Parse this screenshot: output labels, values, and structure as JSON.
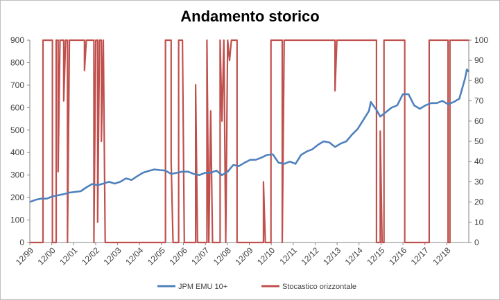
{
  "chart_data": {
    "type": "line",
    "title": "Andamento storico",
    "xlabel": "",
    "ylabel": "",
    "y2label": "",
    "x_tick_labels": [
      "12/99",
      "12/00",
      "12/01",
      "12/02",
      "12/03",
      "12/04",
      "12/05",
      "12/06",
      "12/07",
      "12/08",
      "12/09",
      "12/10",
      "12/11",
      "12/12",
      "12/13",
      "12/14",
      "12/15",
      "12/16",
      "12/17",
      "12/18"
    ],
    "xlim": [
      "1999-12",
      "2019-05"
    ],
    "ylim": [
      0,
      900
    ],
    "y_ticks": [
      0,
      100,
      200,
      300,
      400,
      500,
      600,
      700,
      800,
      900
    ],
    "y2lim": [
      0,
      100
    ],
    "y2_ticks": [
      0,
      10,
      20,
      30,
      40,
      50,
      60,
      70,
      80,
      90,
      100
    ],
    "grid": false,
    "legend_position": "bottom",
    "series": [
      {
        "name": "JPM EMU 10+",
        "axis": "left",
        "color": "#4f81bd",
        "points": [
          [
            "1999-12",
            180
          ],
          [
            "2000-03",
            190
          ],
          [
            "2000-06",
            195
          ],
          [
            "2000-09",
            195
          ],
          [
            "2000-12",
            205
          ],
          [
            "2001-03",
            210
          ],
          [
            "2001-06",
            215
          ],
          [
            "2001-09",
            222
          ],
          [
            "2001-12",
            225
          ],
          [
            "2002-03",
            228
          ],
          [
            "2002-06",
            245
          ],
          [
            "2002-09",
            260
          ],
          [
            "2002-12",
            255
          ],
          [
            "2003-03",
            262
          ],
          [
            "2003-06",
            270
          ],
          [
            "2003-09",
            262
          ],
          [
            "2003-12",
            270
          ],
          [
            "2004-03",
            285
          ],
          [
            "2004-06",
            278
          ],
          [
            "2004-09",
            295
          ],
          [
            "2004-12",
            310
          ],
          [
            "2005-03",
            318
          ],
          [
            "2005-06",
            325
          ],
          [
            "2005-09",
            322
          ],
          [
            "2005-12",
            320
          ],
          [
            "2006-03",
            305
          ],
          [
            "2006-06",
            310
          ],
          [
            "2006-09",
            315
          ],
          [
            "2006-12",
            315
          ],
          [
            "2007-03",
            305
          ],
          [
            "2007-06",
            300
          ],
          [
            "2007-09",
            310
          ],
          [
            "2007-12",
            310
          ],
          [
            "2008-03",
            320
          ],
          [
            "2008-06",
            300
          ],
          [
            "2008-09",
            315
          ],
          [
            "2008-12",
            345
          ],
          [
            "2009-03",
            340
          ],
          [
            "2009-06",
            355
          ],
          [
            "2009-09",
            368
          ],
          [
            "2009-12",
            368
          ],
          [
            "2010-03",
            378
          ],
          [
            "2010-06",
            390
          ],
          [
            "2010-09",
            392
          ],
          [
            "2010-12",
            355
          ],
          [
            "2011-03",
            350
          ],
          [
            "2011-06",
            360
          ],
          [
            "2011-09",
            350
          ],
          [
            "2011-12",
            390
          ],
          [
            "2012-03",
            405
          ],
          [
            "2012-06",
            415
          ],
          [
            "2012-09",
            435
          ],
          [
            "2012-12",
            450
          ],
          [
            "2013-03",
            445
          ],
          [
            "2013-06",
            425
          ],
          [
            "2013-09",
            440
          ],
          [
            "2013-12",
            450
          ],
          [
            "2014-03",
            480
          ],
          [
            "2014-06",
            505
          ],
          [
            "2014-09",
            545
          ],
          [
            "2014-12",
            585
          ],
          [
            "2015-01",
            625
          ],
          [
            "2015-04",
            590
          ],
          [
            "2015-06",
            560
          ],
          [
            "2015-09",
            580
          ],
          [
            "2015-12",
            600
          ],
          [
            "2016-03",
            610
          ],
          [
            "2016-06",
            660
          ],
          [
            "2016-09",
            660
          ],
          [
            "2016-12",
            610
          ],
          [
            "2017-03",
            595
          ],
          [
            "2017-06",
            610
          ],
          [
            "2017-09",
            620
          ],
          [
            "2017-12",
            620
          ],
          [
            "2018-03",
            630
          ],
          [
            "2018-06",
            615
          ],
          [
            "2018-09",
            625
          ],
          [
            "2018-12",
            640
          ],
          [
            "2019-01",
            670
          ],
          [
            "2019-03",
            730
          ],
          [
            "2019-04",
            770
          ],
          [
            "2019-05",
            760
          ]
        ]
      },
      {
        "name": "Stocastico orizzontale",
        "axis": "right",
        "color": "#c0504d",
        "points": [
          [
            "1999-12",
            0
          ],
          [
            "2000-07",
            0
          ],
          [
            "2000-07",
            100
          ],
          [
            "2000-12",
            100
          ],
          [
            "2000-12",
            0
          ],
          [
            "2001-02",
            0
          ],
          [
            "2001-02",
            100
          ],
          [
            "2001-03",
            100
          ],
          [
            "2001-03",
            35
          ],
          [
            "2001-04",
            100
          ],
          [
            "2001-06",
            100
          ],
          [
            "2001-06",
            70
          ],
          [
            "2001-07",
            100
          ],
          [
            "2001-08",
            100
          ],
          [
            "2001-08",
            0
          ],
          [
            "2001-09",
            100
          ],
          [
            "2002-05",
            100
          ],
          [
            "2002-05",
            85
          ],
          [
            "2002-06",
            100
          ],
          [
            "2002-10",
            100
          ],
          [
            "2002-10",
            0
          ],
          [
            "2002-11",
            100
          ],
          [
            "2002-12",
            100
          ],
          [
            "2002-12",
            10
          ],
          [
            "2003-01",
            100
          ],
          [
            "2003-02",
            100
          ],
          [
            "2003-02",
            50
          ],
          [
            "2003-03",
            100
          ],
          [
            "2003-04",
            0
          ],
          [
            "2005-12",
            0
          ],
          [
            "2005-12",
            100
          ],
          [
            "2006-03",
            100
          ],
          [
            "2006-03",
            40
          ],
          [
            "2006-04",
            0
          ],
          [
            "2006-07",
            0
          ],
          [
            "2006-07",
            100
          ],
          [
            "2006-09",
            100
          ],
          [
            "2006-10",
            0
          ],
          [
            "2007-04",
            0
          ],
          [
            "2007-04",
            78
          ],
          [
            "2007-05",
            0
          ],
          [
            "2007-10",
            0
          ],
          [
            "2007-10",
            100
          ],
          [
            "2007-11",
            0
          ],
          [
            "2007-12",
            65
          ],
          [
            "2008-01",
            0
          ],
          [
            "2008-05",
            0
          ],
          [
            "2008-05",
            100
          ],
          [
            "2008-06",
            60
          ],
          [
            "2008-07",
            100
          ],
          [
            "2008-08",
            0
          ],
          [
            "2008-09",
            100
          ],
          [
            "2008-10",
            90
          ],
          [
            "2008-11",
            100
          ],
          [
            "2009-02",
            100
          ],
          [
            "2009-02",
            0
          ],
          [
            "2010-04",
            0
          ],
          [
            "2010-04",
            30
          ],
          [
            "2010-05",
            0
          ],
          [
            "2010-08",
            0
          ],
          [
            "2010-08",
            100
          ],
          [
            "2011-02",
            100
          ],
          [
            "2011-02",
            0
          ],
          [
            "2011-03",
            100
          ],
          [
            "2013-06",
            100
          ],
          [
            "2013-06",
            75
          ],
          [
            "2013-07",
            100
          ],
          [
            "2015-04",
            100
          ],
          [
            "2015-04",
            0
          ],
          [
            "2015-06",
            0
          ],
          [
            "2015-06",
            55
          ],
          [
            "2015-07",
            0
          ],
          [
            "2015-08",
            0
          ],
          [
            "2015-08",
            100
          ],
          [
            "2016-07",
            100
          ],
          [
            "2016-07",
            0
          ],
          [
            "2017-08",
            0
          ],
          [
            "2017-08",
            100
          ],
          [
            "2018-06",
            100
          ],
          [
            "2018-06",
            0
          ],
          [
            "2018-07",
            0
          ],
          [
            "2018-07",
            100
          ],
          [
            "2019-05",
            100
          ]
        ]
      }
    ]
  }
}
